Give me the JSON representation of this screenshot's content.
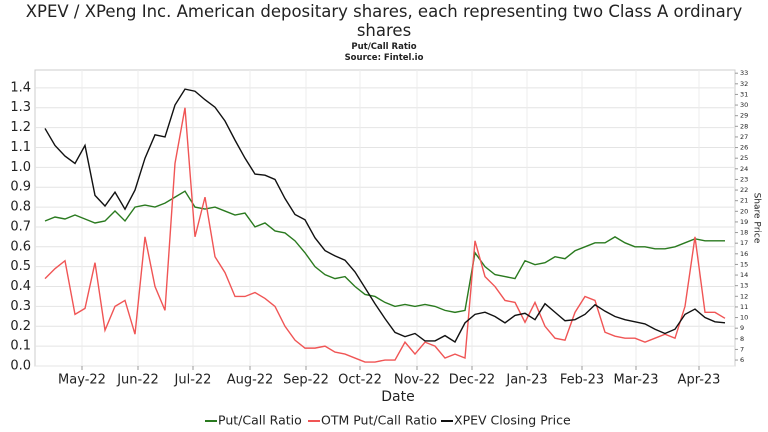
{
  "chart_data": {
    "type": "line",
    "title": "XPEV / XPeng Inc. American depositary shares, each representing two Class A ordinary shares",
    "subtitle": "Put/Call Ratio",
    "source": "Source: Fintel.io",
    "x_label": "Date",
    "y2_label": "Share Price",
    "xlim": [
      -1,
      69
    ],
    "xticks": [
      {
        "value": 3.7,
        "label": "May-22"
      },
      {
        "value": 9.3,
        "label": "Jun-22"
      },
      {
        "value": 14.8,
        "label": "Jul-22"
      },
      {
        "value": 20.5,
        "label": "Aug-22"
      },
      {
        "value": 26.1,
        "label": "Sep-22"
      },
      {
        "value": 31.5,
        "label": "Oct-22"
      },
      {
        "value": 37.2,
        "label": "Nov-22"
      },
      {
        "value": 42.7,
        "label": "Dec-22"
      },
      {
        "value": 48.2,
        "label": "Jan-23"
      },
      {
        "value": 53.7,
        "label": "Feb-23"
      },
      {
        "value": 59.1,
        "label": "Mar-23"
      },
      {
        "value": 65.4,
        "label": "Apr-23"
      }
    ],
    "ylim": [
      0,
      1.49
    ],
    "yticks": [
      {
        "value": 0,
        "label": "0.0"
      },
      0.1,
      0.2,
      0.3,
      0.4,
      0.5,
      0.6,
      0.7,
      0.8,
      0.9,
      {
        "value": 1,
        "label": "1.0"
      },
      1.1,
      1.2,
      1.3,
      1.4
    ],
    "y2lim": [
      5.44,
      33.3
    ],
    "y2ticks": [
      6,
      7,
      8,
      9,
      10,
      11,
      12,
      13,
      14,
      15,
      16,
      17,
      18,
      19,
      20,
      21,
      22,
      23,
      24,
      25,
      26,
      27,
      28,
      29,
      30,
      31,
      32,
      33
    ],
    "grid": true,
    "series": [
      {
        "name": "Put/Call Ratio",
        "color": "#2a7a1f",
        "values": [
          0.73,
          0.75,
          0.74,
          0.76,
          0.74,
          0.72,
          0.73,
          0.78,
          0.73,
          0.8,
          0.81,
          0.8,
          0.82,
          0.85,
          0.88,
          0.8,
          0.79,
          0.8,
          0.78,
          0.76,
          0.77,
          0.7,
          0.72,
          0.68,
          0.67,
          0.63,
          0.57,
          0.5,
          0.46,
          0.44,
          0.45,
          0.4,
          0.36,
          0.35,
          0.32,
          0.3,
          0.31,
          0.3,
          0.31,
          0.3,
          0.28,
          0.27,
          0.28,
          0.57,
          0.5,
          0.46,
          0.45,
          0.44,
          0.53,
          0.51,
          0.52,
          0.55,
          0.54,
          0.58,
          0.6,
          0.62,
          0.62,
          0.65,
          0.62,
          0.6,
          0.6,
          0.59,
          0.59,
          0.6,
          0.62,
          0.64,
          0.63,
          0.63,
          0.63
        ]
      },
      {
        "name": "OTM Put/Call Ratio",
        "color": "#f05555",
        "values": [
          0.44,
          0.49,
          0.53,
          0.26,
          0.29,
          0.52,
          0.18,
          0.3,
          0.33,
          0.16,
          0.65,
          0.4,
          0.28,
          1.02,
          1.3,
          0.65,
          0.85,
          0.55,
          0.47,
          0.35,
          0.35,
          0.37,
          0.34,
          0.3,
          0.2,
          0.13,
          0.09,
          0.09,
          0.1,
          0.07,
          0.06,
          0.04,
          0.02,
          0.02,
          0.03,
          0.03,
          0.12,
          0.06,
          0.12,
          0.1,
          0.04,
          0.06,
          0.04,
          0.63,
          0.45,
          0.4,
          0.33,
          0.32,
          0.22,
          0.32,
          0.2,
          0.14,
          0.13,
          0.27,
          0.35,
          0.33,
          0.17,
          0.15,
          0.14,
          0.14,
          0.12,
          0.14,
          0.16,
          0.14,
          0.3,
          0.65,
          0.27,
          0.27,
          0.24
        ]
      },
      {
        "name": "XPEV Closing Price",
        "color": "#111111",
        "axis": "y2",
        "values": [
          27.8,
          26.2,
          25.2,
          24.5,
          26.2,
          21.5,
          20.5,
          21.8,
          20.2,
          22.0,
          25,
          27.2,
          27,
          30,
          31.5,
          31.3,
          30.5,
          29.8,
          28.5,
          26.7,
          25,
          23.5,
          23.4,
          23,
          21.2,
          19.7,
          19.2,
          17.5,
          16.3,
          15.8,
          15.4,
          14.3,
          12.8,
          11.3,
          9.9,
          8.6,
          8.2,
          8.5,
          7.8,
          7.8,
          8.3,
          7.7,
          9.5,
          10.3,
          10.5,
          10.1,
          9.5,
          10.2,
          10.4,
          9.8,
          11.3,
          10.5,
          9.7,
          9.8,
          10.3,
          11.2,
          10.6,
          10.1,
          9.8,
          9.6,
          9.4,
          8.9,
          8.5,
          8.9,
          10.3,
          10.8,
          10.0,
          9.6,
          9.5
        ]
      }
    ]
  }
}
